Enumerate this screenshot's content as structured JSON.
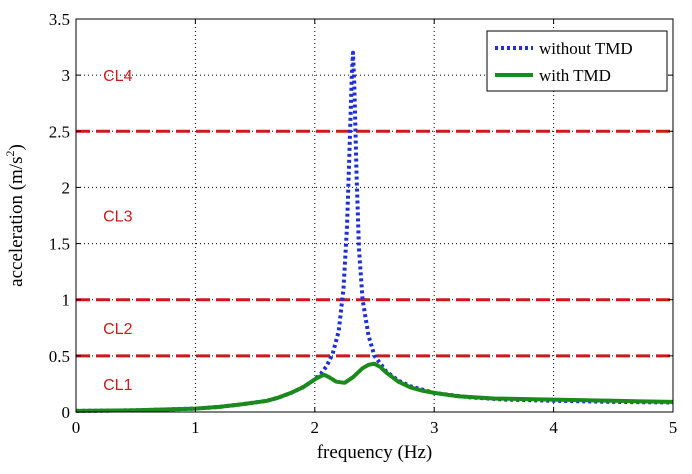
{
  "chart_data": {
    "type": "line",
    "xlabel": "frequency (Hz)",
    "ylabel_main": "acceleration (m/s",
    "ylabel_sup": "2",
    "ylabel_close": ")",
    "xlim": [
      0,
      5
    ],
    "ylim": [
      0,
      3.5
    ],
    "xticks": [
      "0",
      "1",
      "2",
      "3",
      "4",
      "5"
    ],
    "yticks": [
      "0",
      "0.5",
      "1",
      "1.5",
      "2",
      "2.5",
      "3",
      "3.5"
    ],
    "grid": true,
    "legend_position": "top-right",
    "series": [
      {
        "name": "without TMD",
        "color": "#1f2fd6",
        "style": "dotted",
        "x": [
          0,
          0.5,
          1.0,
          1.2,
          1.4,
          1.6,
          1.7,
          1.8,
          1.9,
          2.0,
          2.05,
          2.1,
          2.15,
          2.2,
          2.24,
          2.27,
          2.29,
          2.31,
          2.32,
          2.33,
          2.35,
          2.37,
          2.4,
          2.45,
          2.5,
          2.6,
          2.7,
          2.8,
          3.0,
          3.3,
          3.6,
          4.0,
          4.5,
          5.0
        ],
        "y": [
          0.01,
          0.015,
          0.03,
          0.045,
          0.07,
          0.1,
          0.13,
          0.17,
          0.22,
          0.29,
          0.34,
          0.41,
          0.52,
          0.72,
          1.1,
          1.65,
          2.3,
          3.0,
          3.2,
          2.95,
          2.1,
          1.45,
          1.0,
          0.68,
          0.5,
          0.36,
          0.28,
          0.23,
          0.17,
          0.13,
          0.11,
          0.1,
          0.09,
          0.085
        ]
      },
      {
        "name": "with TMD",
        "color": "#1a8a1a",
        "style": "solid",
        "x": [
          0,
          0.5,
          1.0,
          1.2,
          1.4,
          1.6,
          1.7,
          1.8,
          1.9,
          2.0,
          2.05,
          2.08,
          2.12,
          2.18,
          2.25,
          2.32,
          2.4,
          2.45,
          2.5,
          2.55,
          2.6,
          2.7,
          2.8,
          2.9,
          3.0,
          3.2,
          3.5,
          4.0,
          4.5,
          5.0
        ],
        "y": [
          0.01,
          0.015,
          0.03,
          0.045,
          0.07,
          0.1,
          0.13,
          0.17,
          0.22,
          0.29,
          0.32,
          0.33,
          0.31,
          0.27,
          0.26,
          0.31,
          0.39,
          0.42,
          0.43,
          0.4,
          0.35,
          0.27,
          0.22,
          0.19,
          0.17,
          0.14,
          0.12,
          0.11,
          0.1,
          0.09
        ]
      }
    ],
    "threshold_lines": {
      "color": "#cc1a1a",
      "values": [
        0.5,
        1.0,
        2.5
      ]
    },
    "annotations": [
      {
        "text": "CL1",
        "x": 0.35,
        "y": 0.25
      },
      {
        "text": "CL2",
        "x": 0.35,
        "y": 0.75
      },
      {
        "text": "CL3",
        "x": 0.35,
        "y": 1.75
      },
      {
        "text": "CL4",
        "x": 0.35,
        "y": 3.0
      }
    ]
  }
}
